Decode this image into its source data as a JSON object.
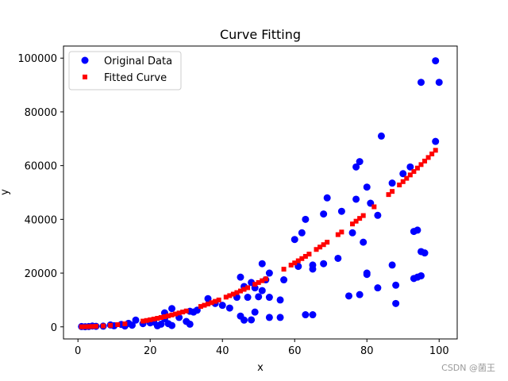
{
  "chart_data": {
    "type": "scatter",
    "title": "Curve Fitting",
    "xlabel": "x",
    "ylabel": "y",
    "xlim": [
      -4,
      105
    ],
    "ylim": [
      -4500,
      104500
    ],
    "xticks": [
      0,
      20,
      40,
      60,
      80,
      100
    ],
    "yticks": [
      0,
      20000,
      40000,
      60000,
      80000,
      100000
    ],
    "legend_position": "top-left",
    "series": [
      {
        "name": "Original Data",
        "marker": "circle",
        "color": "#0000ff",
        "points": [
          [
            1,
            100
          ],
          [
            2,
            60
          ],
          [
            3,
            120
          ],
          [
            4,
            300
          ],
          [
            5,
            200
          ],
          [
            7,
            250
          ],
          [
            9,
            700
          ],
          [
            10,
            400
          ],
          [
            12,
            900
          ],
          [
            13,
            300
          ],
          [
            14,
            1300
          ],
          [
            15,
            600
          ],
          [
            16,
            2500
          ],
          [
            18,
            1200
          ],
          [
            20,
            1500
          ],
          [
            21,
            1800
          ],
          [
            22,
            400
          ],
          [
            23,
            1000
          ],
          [
            24,
            3000
          ],
          [
            24,
            5200
          ],
          [
            25,
            1200
          ],
          [
            26,
            500
          ],
          [
            26,
            6800
          ],
          [
            28,
            3500
          ],
          [
            30,
            2000
          ],
          [
            31,
            1000
          ],
          [
            31,
            5800
          ],
          [
            32,
            5500
          ],
          [
            33,
            6200
          ],
          [
            36,
            10500
          ],
          [
            38,
            8700
          ],
          [
            40,
            8000
          ],
          [
            42,
            7000
          ],
          [
            44,
            11000
          ],
          [
            45,
            18500
          ],
          [
            45,
            4000
          ],
          [
            46,
            15000
          ],
          [
            46,
            2500
          ],
          [
            47,
            11000
          ],
          [
            48,
            16500
          ],
          [
            48,
            2600
          ],
          [
            49,
            14500
          ],
          [
            49,
            5500
          ],
          [
            50,
            11200
          ],
          [
            51,
            23500
          ],
          [
            51,
            13500
          ],
          [
            52,
            17500
          ],
          [
            53,
            20000
          ],
          [
            53,
            11000
          ],
          [
            53,
            3500
          ],
          [
            56,
            10000
          ],
          [
            56,
            3500
          ],
          [
            57,
            17500
          ],
          [
            60,
            32500
          ],
          [
            61,
            22500
          ],
          [
            62,
            35000
          ],
          [
            63,
            40000
          ],
          [
            63,
            4500
          ],
          [
            65,
            23000
          ],
          [
            65,
            21500
          ],
          [
            65,
            4500
          ],
          [
            68,
            42000
          ],
          [
            68,
            23500
          ],
          [
            69,
            48000
          ],
          [
            72,
            25500
          ],
          [
            73,
            43000
          ],
          [
            75,
            11500
          ],
          [
            76,
            35000
          ],
          [
            77,
            59500
          ],
          [
            77,
            47500
          ],
          [
            78,
            61500
          ],
          [
            78,
            12000
          ],
          [
            79,
            31500
          ],
          [
            80,
            52000
          ],
          [
            80,
            20000
          ],
          [
            80,
            19500
          ],
          [
            81,
            46000
          ],
          [
            83,
            41500
          ],
          [
            83,
            14500
          ],
          [
            84,
            71000
          ],
          [
            87,
            53500
          ],
          [
            87,
            23000
          ],
          [
            88,
            15500
          ],
          [
            88,
            8700
          ],
          [
            90,
            57000
          ],
          [
            92,
            59500
          ],
          [
            93,
            35500
          ],
          [
            93,
            18000
          ],
          [
            94,
            36000
          ],
          [
            94,
            18500
          ],
          [
            95,
            91000
          ],
          [
            95,
            19000
          ],
          [
            95,
            28000
          ],
          [
            96,
            27500
          ],
          [
            99,
            99000
          ],
          [
            99,
            69000
          ],
          [
            100,
            91000
          ]
        ]
      },
      {
        "name": "Fitted Curve",
        "marker": "square",
        "color": "#ff0000",
        "points": [
          [
            1,
            21
          ],
          [
            2,
            50
          ],
          [
            3,
            89
          ],
          [
            4,
            137
          ],
          [
            5,
            197
          ],
          [
            7,
            350
          ],
          [
            9,
            554
          ],
          [
            11,
            809
          ],
          [
            13,
            1117
          ],
          [
            18,
            2129
          ],
          [
            19,
            2370
          ],
          [
            20,
            2625
          ],
          [
            21,
            2893
          ],
          [
            22,
            3175
          ],
          [
            23,
            3470
          ],
          [
            24,
            3779
          ],
          [
            25,
            4100
          ],
          [
            26,
            4435
          ],
          [
            27,
            4784
          ],
          [
            28,
            5145
          ],
          [
            29,
            5520
          ],
          [
            30,
            5909
          ],
          [
            34,
            7583
          ],
          [
            35,
            8040
          ],
          [
            36,
            8511
          ],
          [
            37,
            8994
          ],
          [
            38,
            9491
          ],
          [
            39,
            10001
          ],
          [
            41,
            11062
          ],
          [
            42,
            11613
          ],
          [
            43,
            12177
          ],
          [
            44,
            12754
          ],
          [
            45,
            13345
          ],
          [
            46,
            13948
          ],
          [
            47,
            14565
          ],
          [
            49,
            15838
          ],
          [
            50,
            16495
          ],
          [
            51,
            17165
          ],
          [
            52,
            17849
          ],
          [
            57,
            21450
          ],
          [
            59,
            22987
          ],
          [
            60,
            23779
          ],
          [
            61,
            24585
          ],
          [
            62,
            25402
          ],
          [
            63,
            26233
          ],
          [
            64,
            27077
          ],
          [
            66,
            28805
          ],
          [
            67,
            29688
          ],
          [
            68,
            30585
          ],
          [
            69,
            31496
          ],
          [
            72,
            34314
          ],
          [
            73,
            35283
          ],
          [
            76,
            38285
          ],
          [
            77,
            39314
          ],
          [
            78,
            40356
          ],
          [
            79,
            41411
          ],
          [
            82,
            44672
          ],
          [
            86,
            49221
          ],
          [
            87,
            50396
          ],
          [
            89,
            52804
          ],
          [
            90,
            54034
          ],
          [
            91,
            55278
          ],
          [
            92,
            56535
          ],
          [
            93,
            57806
          ],
          [
            94,
            59089
          ],
          [
            95,
            60385
          ],
          [
            96,
            61695
          ],
          [
            97,
            63019
          ],
          [
            98,
            64355
          ],
          [
            99,
            65705
          ]
        ]
      }
    ]
  },
  "watermark": "CSDN @菌王"
}
